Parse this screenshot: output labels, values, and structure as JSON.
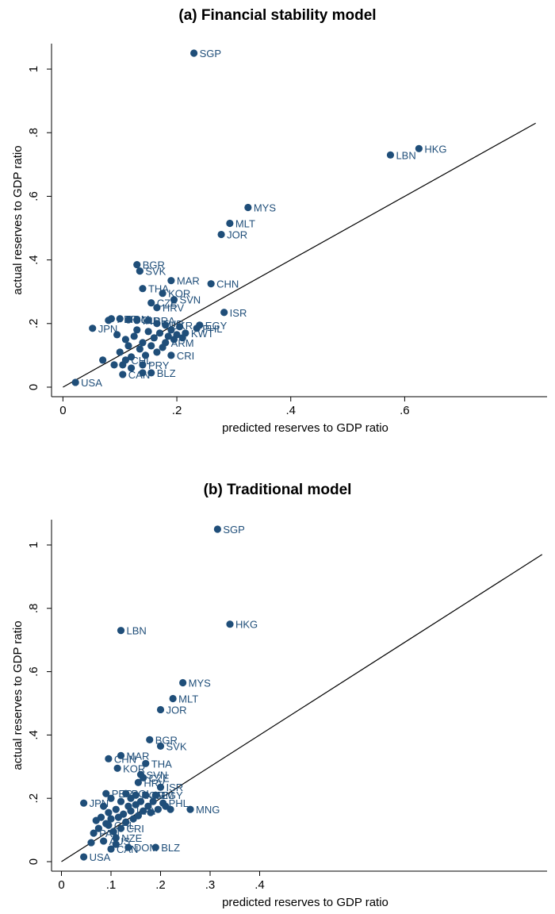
{
  "chart_data": [
    {
      "type": "scatter",
      "title": "(a) Financial stability model",
      "xlabel": "predicted reserves to GDP ratio",
      "ylabel": "actual reserves to GDP ratio",
      "xticks": [
        "0",
        ".2",
        ".4",
        ".6"
      ],
      "yticks": [
        "0",
        ".2",
        ".4",
        ".6",
        ".8",
        "1"
      ],
      "xlim": [
        -0.02,
        0.85
      ],
      "ylim": [
        -0.03,
        1.08
      ],
      "grid": false,
      "marker_color": "#1f4e79",
      "fit_line": {
        "x": [
          0.0,
          0.83
        ],
        "y": [
          0.0,
          0.83
        ]
      },
      "points": [
        {
          "label": "SGP",
          "x": 0.23,
          "y": 1.05
        },
        {
          "label": "HKG",
          "x": 0.625,
          "y": 0.75
        },
        {
          "label": "LBN",
          "x": 0.575,
          "y": 0.73
        },
        {
          "label": "MYS",
          "x": 0.325,
          "y": 0.565
        },
        {
          "label": "MLT",
          "x": 0.293,
          "y": 0.515
        },
        {
          "label": "JOR",
          "x": 0.278,
          "y": 0.48
        },
        {
          "label": "BGR",
          "x": 0.13,
          "y": 0.385
        },
        {
          "label": "SVK",
          "x": 0.135,
          "y": 0.365
        },
        {
          "label": "MAR",
          "x": 0.19,
          "y": 0.335
        },
        {
          "label": "CHN",
          "x": 0.26,
          "y": 0.325
        },
        {
          "label": "THA",
          "x": 0.14,
          "y": 0.31
        },
        {
          "label": "KOR",
          "x": 0.175,
          "y": 0.295
        },
        {
          "label": "SVN",
          "x": 0.195,
          "y": 0.275
        },
        {
          "label": "CZE",
          "x": 0.155,
          "y": 0.265
        },
        {
          "label": "HRV",
          "x": 0.165,
          "y": 0.25
        },
        {
          "label": "ISR",
          "x": 0.283,
          "y": 0.235
        },
        {
          "label": "EGY",
          "x": 0.24,
          "y": 0.195
        },
        {
          "label": "PHL",
          "x": 0.235,
          "y": 0.185
        },
        {
          "label": "JPN",
          "x": 0.052,
          "y": 0.185
        },
        {
          "label": "PER",
          "x": 0.085,
          "y": 0.215
        },
        {
          "label": "ROM",
          "x": 0.1,
          "y": 0.215
        },
        {
          "label": "POL",
          "x": 0.115,
          "y": 0.212
        },
        {
          "label": "IND",
          "x": 0.13,
          "y": 0.21
        },
        {
          "label": "BRA",
          "x": 0.15,
          "y": 0.21
        },
        {
          "label": "TUR",
          "x": 0.165,
          "y": 0.2
        },
        {
          "label": "UKR",
          "x": 0.18,
          "y": 0.195
        },
        {
          "label": "KWT",
          "x": 0.215,
          "y": 0.17
        },
        {
          "label": "ARM",
          "x": 0.18,
          "y": 0.14
        },
        {
          "label": "CRI",
          "x": 0.19,
          "y": 0.1
        },
        {
          "label": "CHL",
          "x": 0.11,
          "y": 0.085
        },
        {
          "label": "PRY",
          "x": 0.14,
          "y": 0.07
        },
        {
          "label": "CAN",
          "x": 0.105,
          "y": 0.04
        },
        {
          "label": "BLZ",
          "x": 0.155,
          "y": 0.045
        },
        {
          "label": "USA",
          "x": 0.022,
          "y": 0.015
        },
        {
          "label": "",
          "x": 0.07,
          "y": 0.085
        },
        {
          "label": "",
          "x": 0.08,
          "y": 0.21
        },
        {
          "label": "",
          "x": 0.095,
          "y": 0.165
        },
        {
          "label": "",
          "x": 0.1,
          "y": 0.11
        },
        {
          "label": "",
          "x": 0.105,
          "y": 0.07
        },
        {
          "label": "",
          "x": 0.11,
          "y": 0.15
        },
        {
          "label": "",
          "x": 0.115,
          "y": 0.13
        },
        {
          "label": "",
          "x": 0.12,
          "y": 0.095
        },
        {
          "label": "",
          "x": 0.125,
          "y": 0.16
        },
        {
          "label": "",
          "x": 0.13,
          "y": 0.18
        },
        {
          "label": "",
          "x": 0.135,
          "y": 0.12
        },
        {
          "label": "",
          "x": 0.14,
          "y": 0.14
        },
        {
          "label": "",
          "x": 0.145,
          "y": 0.1
        },
        {
          "label": "",
          "x": 0.15,
          "y": 0.175
        },
        {
          "label": "",
          "x": 0.155,
          "y": 0.13
        },
        {
          "label": "",
          "x": 0.16,
          "y": 0.155
        },
        {
          "label": "",
          "x": 0.165,
          "y": 0.11
        },
        {
          "label": "",
          "x": 0.17,
          "y": 0.17
        },
        {
          "label": "",
          "x": 0.175,
          "y": 0.125
        },
        {
          "label": "",
          "x": 0.185,
          "y": 0.16
        },
        {
          "label": "",
          "x": 0.19,
          "y": 0.18
        },
        {
          "label": "",
          "x": 0.195,
          "y": 0.15
        },
        {
          "label": "",
          "x": 0.2,
          "y": 0.165
        },
        {
          "label": "",
          "x": 0.205,
          "y": 0.19
        },
        {
          "label": "",
          "x": 0.21,
          "y": 0.155
        },
        {
          "label": "",
          "x": 0.12,
          "y": 0.06
        },
        {
          "label": "",
          "x": 0.14,
          "y": 0.045
        },
        {
          "label": "",
          "x": 0.09,
          "y": 0.07
        }
      ]
    },
    {
      "type": "scatter",
      "title": "(b) Traditional model",
      "xlabel": "predicted reserves to GDP ratio",
      "ylabel": "actual reserves to GDP ratio",
      "xticks": [
        "0",
        ".1",
        ".2",
        ".3",
        ".4"
      ],
      "yticks": [
        "0",
        ".2",
        ".4",
        ".6",
        ".8",
        "1"
      ],
      "xlim": [
        -0.02,
        0.98
      ],
      "ylim": [
        -0.03,
        1.08
      ],
      "grid": false,
      "marker_color": "#1f4e79",
      "fit_line": {
        "x": [
          0.0,
          0.97
        ],
        "y": [
          0.0,
          0.97
        ]
      },
      "points": [
        {
          "label": "SGP",
          "x": 0.315,
          "y": 1.05
        },
        {
          "label": "LBN",
          "x": 0.12,
          "y": 0.73
        },
        {
          "label": "HKG",
          "x": 0.34,
          "y": 0.75
        },
        {
          "label": "MYS",
          "x": 0.245,
          "y": 0.565
        },
        {
          "label": "MLT",
          "x": 0.225,
          "y": 0.515
        },
        {
          "label": "JOR",
          "x": 0.2,
          "y": 0.48
        },
        {
          "label": "BGR",
          "x": 0.178,
          "y": 0.385
        },
        {
          "label": "SVK",
          "x": 0.2,
          "y": 0.365
        },
        {
          "label": "MAR",
          "x": 0.12,
          "y": 0.335
        },
        {
          "label": "CHN",
          "x": 0.095,
          "y": 0.325
        },
        {
          "label": "THA",
          "x": 0.17,
          "y": 0.31
        },
        {
          "label": "KOR",
          "x": 0.113,
          "y": 0.295
        },
        {
          "label": "SVN",
          "x": 0.16,
          "y": 0.275
        },
        {
          "label": "CZE",
          "x": 0.165,
          "y": 0.265
        },
        {
          "label": "HRV",
          "x": 0.155,
          "y": 0.25
        },
        {
          "label": "ISR",
          "x": 0.2,
          "y": 0.235
        },
        {
          "label": "EGY",
          "x": 0.19,
          "y": 0.21
        },
        {
          "label": "ARM",
          "x": 0.17,
          "y": 0.21
        },
        {
          "label": "PHL",
          "x": 0.205,
          "y": 0.185
        },
        {
          "label": "MNG",
          "x": 0.26,
          "y": 0.165
        },
        {
          "label": "JPN",
          "x": 0.045,
          "y": 0.185
        },
        {
          "label": "PER",
          "x": 0.09,
          "y": 0.215
        },
        {
          "label": "POL",
          "x": 0.13,
          "y": 0.215
        },
        {
          "label": "ROM",
          "x": 0.15,
          "y": 0.21
        },
        {
          "label": "URY",
          "x": 0.14,
          "y": 0.16
        },
        {
          "label": "CRI",
          "x": 0.12,
          "y": 0.105
        },
        {
          "label": "CHL",
          "x": 0.095,
          "y": 0.115
        },
        {
          "label": "PAN",
          "x": 0.065,
          "y": 0.09
        },
        {
          "label": "AUS",
          "x": 0.085,
          "y": 0.065
        },
        {
          "label": "NZE",
          "x": 0.11,
          "y": 0.075
        },
        {
          "label": "DOM",
          "x": 0.135,
          "y": 0.045
        },
        {
          "label": "BLZ",
          "x": 0.19,
          "y": 0.045
        },
        {
          "label": "CAN",
          "x": 0.1,
          "y": 0.04
        },
        {
          "label": "USA",
          "x": 0.045,
          "y": 0.015
        },
        {
          "label": "",
          "x": 0.07,
          "y": 0.13
        },
        {
          "label": "",
          "x": 0.075,
          "y": 0.105
        },
        {
          "label": "",
          "x": 0.08,
          "y": 0.14
        },
        {
          "label": "",
          "x": 0.085,
          "y": 0.175
        },
        {
          "label": "",
          "x": 0.09,
          "y": 0.12
        },
        {
          "label": "",
          "x": 0.095,
          "y": 0.155
        },
        {
          "label": "",
          "x": 0.1,
          "y": 0.2
        },
        {
          "label": "",
          "x": 0.1,
          "y": 0.135
        },
        {
          "label": "",
          "x": 0.105,
          "y": 0.095
        },
        {
          "label": "",
          "x": 0.11,
          "y": 0.165
        },
        {
          "label": "",
          "x": 0.115,
          "y": 0.14
        },
        {
          "label": "",
          "x": 0.12,
          "y": 0.19
        },
        {
          "label": "",
          "x": 0.125,
          "y": 0.15
        },
        {
          "label": "",
          "x": 0.13,
          "y": 0.125
        },
        {
          "label": "",
          "x": 0.135,
          "y": 0.175
        },
        {
          "label": "",
          "x": 0.14,
          "y": 0.2
        },
        {
          "label": "",
          "x": 0.145,
          "y": 0.135
        },
        {
          "label": "",
          "x": 0.15,
          "y": 0.18
        },
        {
          "label": "",
          "x": 0.155,
          "y": 0.145
        },
        {
          "label": "",
          "x": 0.16,
          "y": 0.19
        },
        {
          "label": "",
          "x": 0.165,
          "y": 0.16
        },
        {
          "label": "",
          "x": 0.175,
          "y": 0.175
        },
        {
          "label": "",
          "x": 0.18,
          "y": 0.155
        },
        {
          "label": "",
          "x": 0.185,
          "y": 0.19
        },
        {
          "label": "",
          "x": 0.195,
          "y": 0.165
        },
        {
          "label": "",
          "x": 0.21,
          "y": 0.175
        },
        {
          "label": "",
          "x": 0.22,
          "y": 0.165
        },
        {
          "label": "",
          "x": 0.06,
          "y": 0.06
        },
        {
          "label": "",
          "x": 0.11,
          "y": 0.055
        }
      ]
    }
  ]
}
